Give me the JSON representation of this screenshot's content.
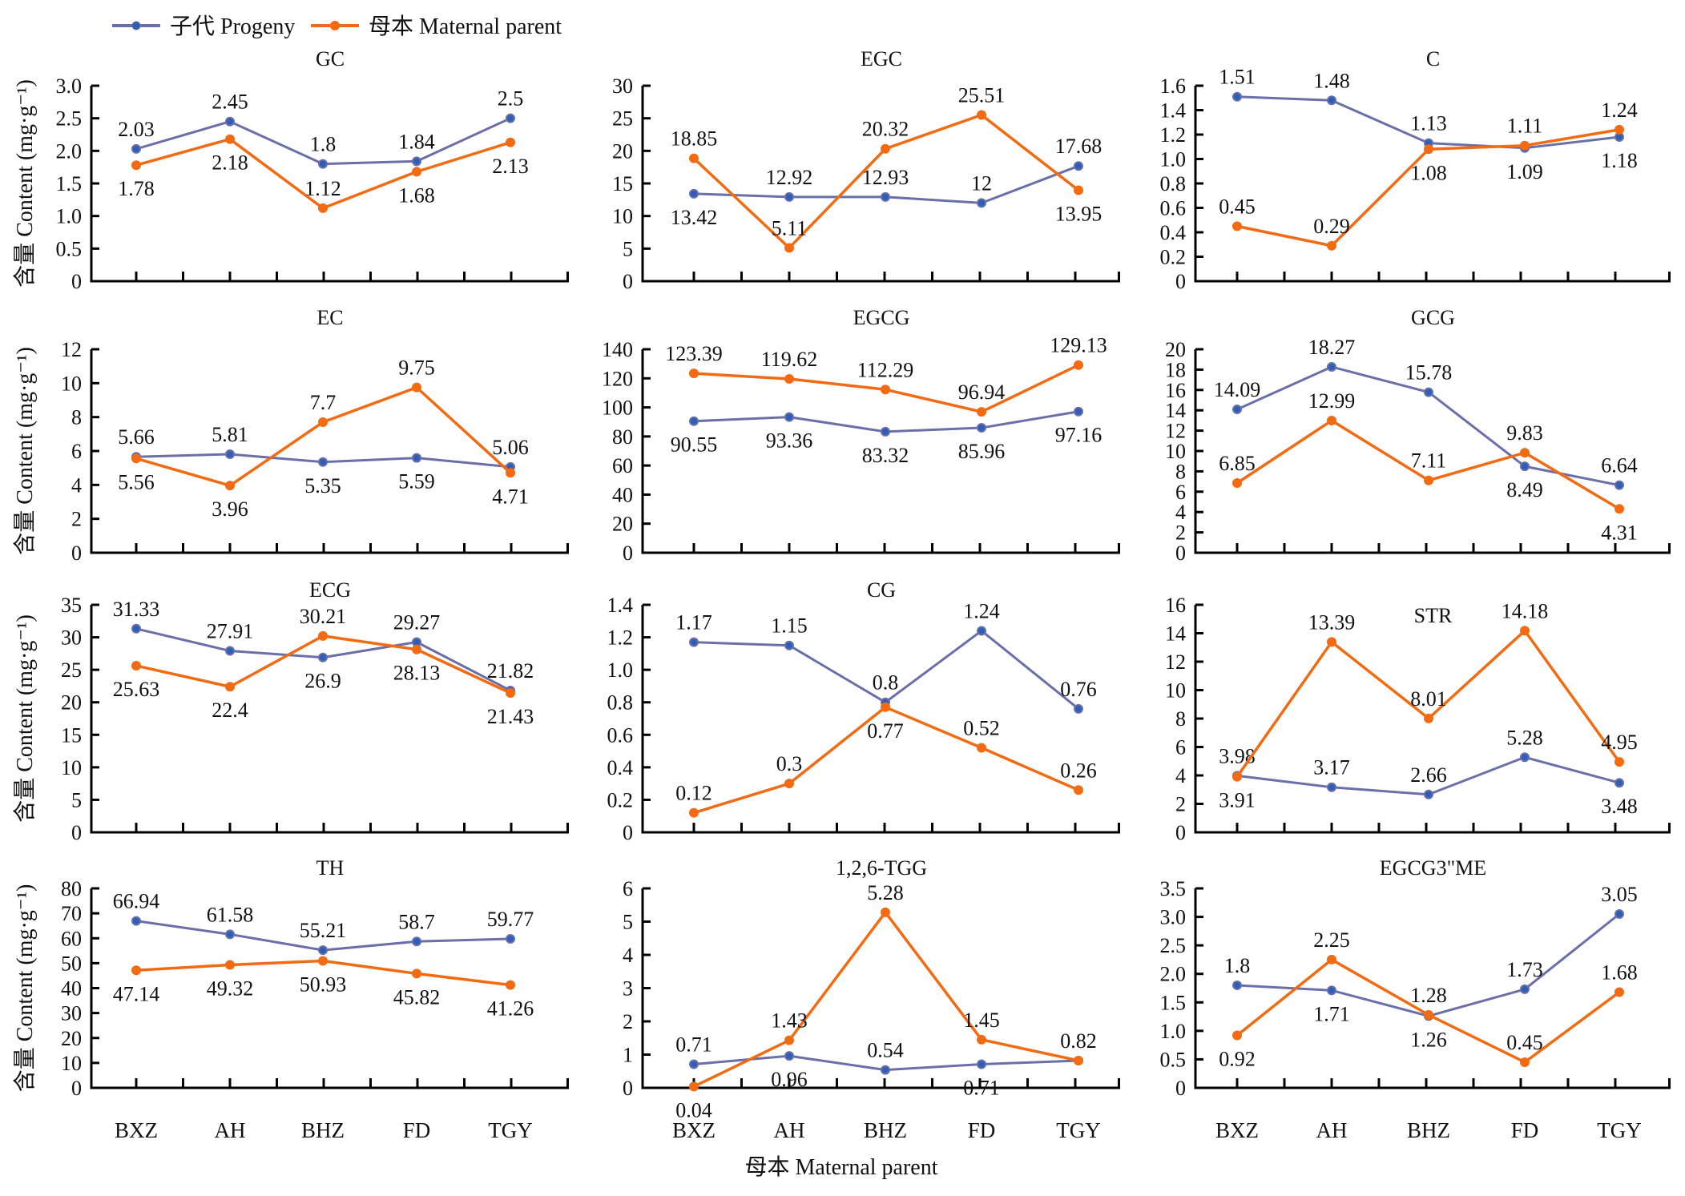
{
  "legend": {
    "progeny": "子代 Progeny",
    "maternal": "母本 Maternal parent"
  },
  "colors": {
    "progeny": "#6a6fa8",
    "progeny_marker_dot": "#2b5fb8",
    "maternal": "#f26b12",
    "axis": "#000000"
  },
  "y_axis_label": "含量 Content (mg·g⁻¹)",
  "x_axis_title": "母本 Maternal parent",
  "chart_data": [
    {
      "type": "line",
      "title": "GC",
      "categories": [
        "BXZ",
        "AH",
        "BHZ",
        "FD",
        "TGY"
      ],
      "ylim": [
        0,
        3.0
      ],
      "yticks": [
        "0",
        "0.5",
        "1.0",
        "1.5",
        "2.0",
        "2.5",
        "3.0"
      ],
      "ytick_values": [
        0,
        0.5,
        1.0,
        1.5,
        2.0,
        2.5,
        3.0
      ],
      "series": [
        {
          "name": "子代 Progeny",
          "values": [
            2.03,
            2.45,
            1.8,
            1.84,
            2.5
          ],
          "labels": [
            "2.03",
            "2.45",
            "1.8",
            "1.84",
            "2.5"
          ],
          "label_pos": [
            "above",
            "above",
            "above",
            "above",
            "above"
          ]
        },
        {
          "name": "母本 Maternal parent",
          "values": [
            1.78,
            2.18,
            1.12,
            1.68,
            2.13
          ],
          "labels": [
            "1.78",
            "2.18",
            "1.12",
            "1.68",
            "2.13"
          ],
          "label_pos": [
            "below",
            "below",
            "above",
            "below",
            "below"
          ]
        }
      ],
      "xlabel": "",
      "ylabel": "含量 Content (mg·g⁻¹)",
      "show_categories": false
    },
    {
      "type": "line",
      "title": "EGC",
      "categories": [
        "BXZ",
        "AH",
        "BHZ",
        "FD",
        "TGY"
      ],
      "ylim": [
        0,
        30
      ],
      "yticks": [
        "0",
        "5",
        "10",
        "15",
        "20",
        "25",
        "30"
      ],
      "ytick_values": [
        0,
        5,
        10,
        15,
        20,
        25,
        30
      ],
      "series": [
        {
          "name": "子代 Progeny",
          "values": [
            13.42,
            12.92,
            12.93,
            12,
            17.68
          ],
          "labels": [
            "13.42",
            "12.92",
            "12.93",
            "12",
            "17.68"
          ],
          "label_pos": [
            "below",
            "above",
            "above",
            "above",
            "above"
          ]
        },
        {
          "name": "母本 Maternal parent",
          "values": [
            18.85,
            5.11,
            20.32,
            25.51,
            13.95
          ],
          "labels": [
            "18.85",
            "5.11",
            "20.32",
            "25.51",
            "13.95"
          ],
          "label_pos": [
            "above",
            "above",
            "above",
            "above",
            "below"
          ]
        }
      ],
      "xlabel": "",
      "ylabel": "",
      "show_categories": false
    },
    {
      "type": "line",
      "title": "C",
      "categories": [
        "BXZ",
        "AH",
        "BHZ",
        "FD",
        "TGY"
      ],
      "ylim": [
        0,
        1.6
      ],
      "yticks": [
        "0",
        "0.2",
        "0.4",
        "0.6",
        "0.8",
        "1.0",
        "1.2",
        "1.4",
        "1.6"
      ],
      "ytick_values": [
        0,
        0.2,
        0.4,
        0.6,
        0.8,
        1.0,
        1.2,
        1.4,
        1.6
      ],
      "series": [
        {
          "name": "子代 Progeny",
          "values": [
            1.51,
            1.48,
            1.13,
            1.09,
            1.18
          ],
          "labels": [
            "1.51",
            "1.48",
            "1.13",
            "1.09",
            "1.18"
          ],
          "label_pos": [
            "above",
            "above",
            "above",
            "below",
            "below"
          ]
        },
        {
          "name": "母本 Maternal parent",
          "values": [
            0.45,
            0.29,
            1.08,
            1.11,
            1.24
          ],
          "labels": [
            "0.45",
            "0.29",
            "1.08",
            "1.11",
            "1.24"
          ],
          "label_pos": [
            "above",
            "above",
            "below",
            "above",
            "above"
          ]
        }
      ],
      "xlabel": "",
      "ylabel": "",
      "show_categories": false
    },
    {
      "type": "line",
      "title": "EC",
      "categories": [
        "BXZ",
        "AH",
        "BHZ",
        "FD",
        "TGY"
      ],
      "ylim": [
        0,
        12
      ],
      "yticks": [
        "0",
        "2",
        "4",
        "6",
        "8",
        "10",
        "12"
      ],
      "ytick_values": [
        0,
        2,
        4,
        6,
        8,
        10,
        12
      ],
      "series": [
        {
          "name": "子代 Progeny",
          "values": [
            5.66,
            5.81,
            5.35,
            5.59,
            5.06
          ],
          "labels": [
            "5.66",
            "5.81",
            "5.35",
            "5.59",
            "5.06"
          ],
          "label_pos": [
            "above",
            "above",
            "below",
            "below",
            "above"
          ]
        },
        {
          "name": "母本 Maternal parent",
          "values": [
            5.56,
            3.96,
            7.7,
            9.75,
            4.71
          ],
          "labels": [
            "5.56",
            "3.96",
            "7.7",
            "9.75",
            "4.71"
          ],
          "label_pos": [
            "below",
            "below",
            "above",
            "above",
            "below"
          ]
        }
      ],
      "xlabel": "",
      "ylabel": "含量 Content (mg·g⁻¹)",
      "show_categories": false
    },
    {
      "type": "line",
      "title": "EGCG",
      "categories": [
        "BXZ",
        "AH",
        "BHZ",
        "FD",
        "TGY"
      ],
      "ylim": [
        0,
        140
      ],
      "yticks": [
        "0",
        "20",
        "40",
        "60",
        "80",
        "100",
        "120",
        "140"
      ],
      "ytick_values": [
        0,
        20,
        40,
        60,
        80,
        100,
        120,
        140
      ],
      "series": [
        {
          "name": "子代 Progeny",
          "values": [
            90.55,
            93.36,
            83.32,
            85.96,
            97.16
          ],
          "labels": [
            "90.55",
            "93.36",
            "83.32",
            "85.96",
            "97.16"
          ],
          "label_pos": [
            "below",
            "below",
            "below",
            "below",
            "below"
          ]
        },
        {
          "name": "母本 Maternal parent",
          "values": [
            123.39,
            119.62,
            112.29,
            96.94,
            129.13
          ],
          "labels": [
            "123.39",
            "119.62",
            "112.29",
            "96.94",
            "129.13"
          ],
          "label_pos": [
            "above",
            "above",
            "above",
            "above",
            "above"
          ]
        }
      ],
      "xlabel": "",
      "ylabel": "",
      "show_categories": false
    },
    {
      "type": "line",
      "title": "GCG",
      "categories": [
        "BXZ",
        "AH",
        "BHZ",
        "FD",
        "TGY"
      ],
      "ylim": [
        0,
        20
      ],
      "yticks": [
        "0",
        "2",
        "4",
        "6",
        "8",
        "10",
        "12",
        "14",
        "16",
        "18",
        "20"
      ],
      "ytick_values": [
        0,
        2,
        4,
        6,
        8,
        10,
        12,
        14,
        16,
        18,
        20
      ],
      "series": [
        {
          "name": "子代 Progeny",
          "values": [
            14.09,
            18.27,
            15.78,
            8.49,
            6.64
          ],
          "labels": [
            "14.09",
            "18.27",
            "15.78",
            "8.49",
            "6.64"
          ],
          "label_pos": [
            "above",
            "above",
            "above",
            "below",
            "above"
          ]
        },
        {
          "name": "母本 Maternal parent",
          "values": [
            6.85,
            12.99,
            7.11,
            9.83,
            4.31
          ],
          "labels": [
            "6.85",
            "12.99",
            "7.11",
            "9.83",
            "4.31"
          ],
          "label_pos": [
            "above",
            "above",
            "above",
            "above",
            "below"
          ]
        }
      ],
      "xlabel": "",
      "ylabel": "",
      "show_categories": false
    },
    {
      "type": "line",
      "title": "ECG",
      "categories": [
        "BXZ",
        "AH",
        "BHZ",
        "FD",
        "TGY"
      ],
      "ylim": [
        0,
        35
      ],
      "yticks": [
        "0",
        "5",
        "10",
        "15",
        "20",
        "25",
        "30",
        "35"
      ],
      "ytick_values": [
        0,
        5,
        10,
        15,
        20,
        25,
        30,
        35
      ],
      "series": [
        {
          "name": "子代 Progeny",
          "values": [
            31.33,
            27.91,
            26.9,
            29.27,
            21.82
          ],
          "labels": [
            "31.33",
            "27.91",
            "26.9",
            "29.27",
            "21.82"
          ],
          "label_pos": [
            "above",
            "above",
            "below",
            "above",
            "above"
          ]
        },
        {
          "name": "母本 Maternal parent",
          "values": [
            25.63,
            22.4,
            30.21,
            28.13,
            21.43
          ],
          "labels": [
            "25.63",
            "22.4",
            "30.21",
            "28.13",
            "21.43"
          ],
          "label_pos": [
            "below",
            "below",
            "above",
            "below",
            "below"
          ]
        }
      ],
      "xlabel": "",
      "ylabel": "含量 Content (mg·g⁻¹)",
      "show_categories": false
    },
    {
      "type": "line",
      "title": "CG",
      "categories": [
        "BXZ",
        "AH",
        "BHZ",
        "FD",
        "TGY"
      ],
      "ylim": [
        0,
        1.4
      ],
      "yticks": [
        "0",
        "0.2",
        "0.4",
        "0.6",
        "0.8",
        "1.0",
        "1.2",
        "1.4"
      ],
      "ytick_values": [
        0,
        0.2,
        0.4,
        0.6,
        0.8,
        1.0,
        1.2,
        1.4
      ],
      "series": [
        {
          "name": "子代 Progeny",
          "values": [
            1.17,
            1.15,
            0.8,
            1.24,
            0.76
          ],
          "labels": [
            "1.17",
            "1.15",
            "0.8",
            "1.24",
            "0.76"
          ],
          "label_pos": [
            "above",
            "above",
            "above",
            "above",
            "above"
          ]
        },
        {
          "name": "母本 Maternal parent",
          "values": [
            0.12,
            0.3,
            0.77,
            0.52,
            0.26
          ],
          "labels": [
            "0.12",
            "0.3",
            "0.77",
            "0.52",
            "0.26"
          ],
          "label_pos": [
            "above",
            "above",
            "below",
            "above",
            "above"
          ]
        }
      ],
      "xlabel": "",
      "ylabel": "",
      "show_categories": false
    },
    {
      "type": "line",
      "title": "STR",
      "categories": [
        "BXZ",
        "AH",
        "BHZ",
        "FD",
        "TGY"
      ],
      "ylim": [
        0,
        16
      ],
      "yticks": [
        "0",
        "2",
        "4",
        "6",
        "8",
        "10",
        "12",
        "14",
        "16"
      ],
      "ytick_values": [
        0,
        2,
        4,
        6,
        8,
        10,
        12,
        14,
        16
      ],
      "series": [
        {
          "name": "子代 Progeny",
          "values": [
            3.98,
            3.17,
            2.66,
            5.28,
            3.48
          ],
          "labels": [
            "3.98",
            "3.17",
            "2.66",
            "5.28",
            "3.48"
          ],
          "label_pos": [
            "above",
            "above",
            "above",
            "above",
            "below"
          ]
        },
        {
          "name": "母本 Maternal parent",
          "values": [
            3.91,
            13.39,
            8.01,
            14.18,
            4.95
          ],
          "labels": [
            "3.91",
            "13.39",
            "8.01",
            "14.18",
            "4.95"
          ],
          "label_pos": [
            "below",
            "above",
            "above",
            "above",
            "above"
          ]
        }
      ],
      "xlabel": "",
      "ylabel": "",
      "show_categories": false
    },
    {
      "type": "line",
      "title": "TH",
      "categories": [
        "BXZ",
        "AH",
        "BHZ",
        "FD",
        "TGY"
      ],
      "ylim": [
        0,
        80
      ],
      "yticks": [
        "0",
        "10",
        "20",
        "30",
        "40",
        "50",
        "60",
        "70",
        "80"
      ],
      "ytick_values": [
        0,
        10,
        20,
        30,
        40,
        50,
        60,
        70,
        80
      ],
      "series": [
        {
          "name": "子代 Progeny",
          "values": [
            66.94,
            61.58,
            55.21,
            58.7,
            59.77
          ],
          "labels": [
            "66.94",
            "61.58",
            "55.21",
            "58.7",
            "59.77"
          ],
          "label_pos": [
            "above",
            "above",
            "above",
            "above",
            "above"
          ]
        },
        {
          "name": "母本 Maternal parent",
          "values": [
            47.14,
            49.32,
            50.93,
            45.82,
            41.26
          ],
          "labels": [
            "47.14",
            "49.32",
            "50.93",
            "45.82",
            "41.26"
          ],
          "label_pos": [
            "below",
            "below",
            "below",
            "below",
            "below"
          ]
        }
      ],
      "xlabel": "",
      "ylabel": "含量 Content (mg·g⁻¹)",
      "show_categories": true
    },
    {
      "type": "line",
      "title": "1,2,6-TGG",
      "categories": [
        "BXZ",
        "AH",
        "BHZ",
        "FD",
        "TGY"
      ],
      "ylim": [
        0,
        6
      ],
      "yticks": [
        "0",
        "1",
        "2",
        "3",
        "4",
        "5",
        "6"
      ],
      "ytick_values": [
        0,
        1,
        2,
        3,
        4,
        5,
        6
      ],
      "series": [
        {
          "name": "子代 Progeny",
          "values": [
            0.71,
            0.96,
            0.54,
            0.71,
            0.82
          ],
          "labels": [
            "0.71",
            "0.96",
            "0.54",
            "0.71",
            "0.82"
          ],
          "label_pos": [
            "above",
            "below",
            "above",
            "below",
            "above"
          ]
        },
        {
          "name": "母本 Maternal parent",
          "values": [
            0.04,
            1.43,
            5.28,
            1.45,
            0.82
          ],
          "labels": [
            "0.04",
            "1.43",
            "5.28",
            "1.45",
            ""
          ],
          "label_pos": [
            "below",
            "above",
            "above",
            "above",
            "above"
          ]
        }
      ],
      "xlabel": "母本 Maternal parent",
      "ylabel": "",
      "show_categories": true
    },
    {
      "type": "line",
      "title": "EGCG3\"ME",
      "categories": [
        "BXZ",
        "AH",
        "BHZ",
        "FD",
        "TGY"
      ],
      "ylim": [
        0,
        3.5
      ],
      "yticks": [
        "0",
        "0.5",
        "1.0",
        "1.5",
        "2.0",
        "2.5",
        "3.0",
        "3.5"
      ],
      "ytick_values": [
        0,
        0.5,
        1.0,
        1.5,
        2.0,
        2.5,
        3.0,
        3.5
      ],
      "series": [
        {
          "name": "子代 Progeny",
          "values": [
            1.8,
            1.71,
            1.26,
            1.73,
            3.05
          ],
          "labels": [
            "1.8",
            "1.71",
            "1.26",
            "1.73",
            "3.05"
          ],
          "label_pos": [
            "above",
            "below",
            "below",
            "above",
            "above"
          ]
        },
        {
          "name": "母本 Maternal parent",
          "values": [
            0.92,
            2.25,
            1.28,
            0.45,
            1.68
          ],
          "labels": [
            "0.92",
            "2.25",
            "1.28",
            "0.45",
            "1.68"
          ],
          "label_pos": [
            "below",
            "above",
            "above",
            "above",
            "above"
          ]
        }
      ],
      "xlabel": "",
      "ylabel": "",
      "show_categories": true
    }
  ]
}
